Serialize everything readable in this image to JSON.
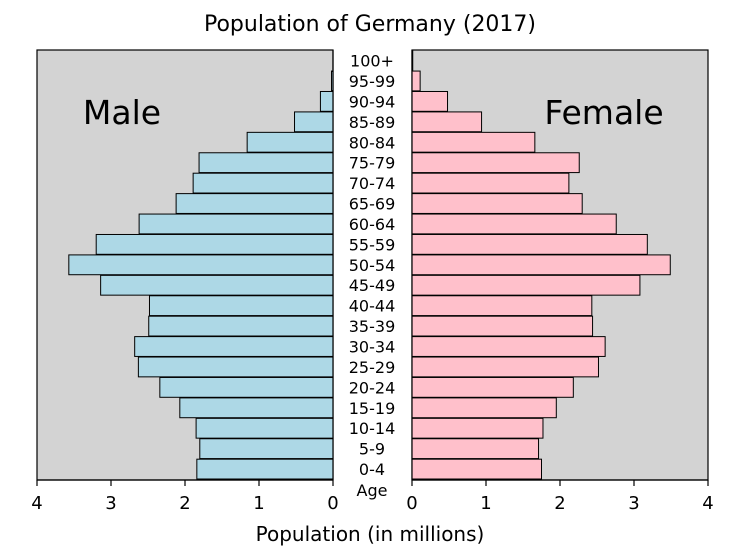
{
  "chart_data": {
    "type": "bar",
    "title": "Population of Germany (2017)",
    "xlabel": "Population (in millions)",
    "age_label": "Age",
    "xlim": [
      0,
      4
    ],
    "x_ticks": [
      "4",
      "3",
      "2",
      "1",
      "0",
      "0",
      "1",
      "2",
      "3",
      "4"
    ],
    "categories": [
      "0-4",
      "5-9",
      "10-14",
      "15-19",
      "20-24",
      "25-29",
      "30-34",
      "35-39",
      "40-44",
      "45-49",
      "50-54",
      "55-59",
      "60-64",
      "65-69",
      "70-74",
      "75-79",
      "80-84",
      "85-89",
      "90-94",
      "95-99",
      "100+"
    ],
    "series": [
      {
        "name": "Male",
        "color": "#add8e6",
        "values": [
          1.84,
          1.8,
          1.85,
          2.07,
          2.34,
          2.63,
          2.68,
          2.49,
          2.48,
          3.14,
          3.57,
          3.2,
          2.62,
          2.12,
          1.89,
          1.81,
          1.16,
          0.52,
          0.17,
          0.02,
          0.0
        ]
      },
      {
        "name": "Female",
        "color": "#ffc0cb",
        "values": [
          1.75,
          1.71,
          1.77,
          1.95,
          2.18,
          2.52,
          2.61,
          2.44,
          2.43,
          3.08,
          3.49,
          3.18,
          2.76,
          2.3,
          2.12,
          2.26,
          1.66,
          0.94,
          0.48,
          0.11,
          0.01
        ]
      }
    ],
    "colors": {
      "panel": "#d3d3d3",
      "male": "#add8e6",
      "female": "#ffc0cb"
    }
  }
}
